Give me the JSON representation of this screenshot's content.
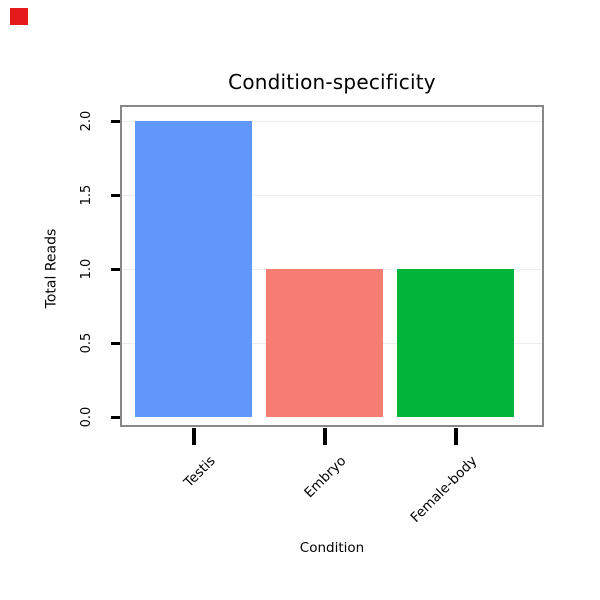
{
  "chart_data": {
    "type": "bar",
    "title": "Condition-specificity",
    "xlabel": "Condition",
    "ylabel": "Total Reads",
    "categories": [
      "Testis",
      "Embryo",
      "Female-body"
    ],
    "values": [
      2,
      1,
      1
    ],
    "colors": [
      "#6197f8",
      "#f57d72",
      "#00b53a"
    ],
    "yticks": [
      0,
      0.5,
      1,
      1.5,
      2
    ],
    "ytick_labels": [
      "0.0",
      "0.5",
      "1.0",
      "1.5",
      "2.0"
    ],
    "ylim": [
      0,
      2.1
    ],
    "grid": "horizontal-light",
    "legend": "none"
  },
  "decorations": {
    "corner_marker_color": "#e41a1c"
  }
}
